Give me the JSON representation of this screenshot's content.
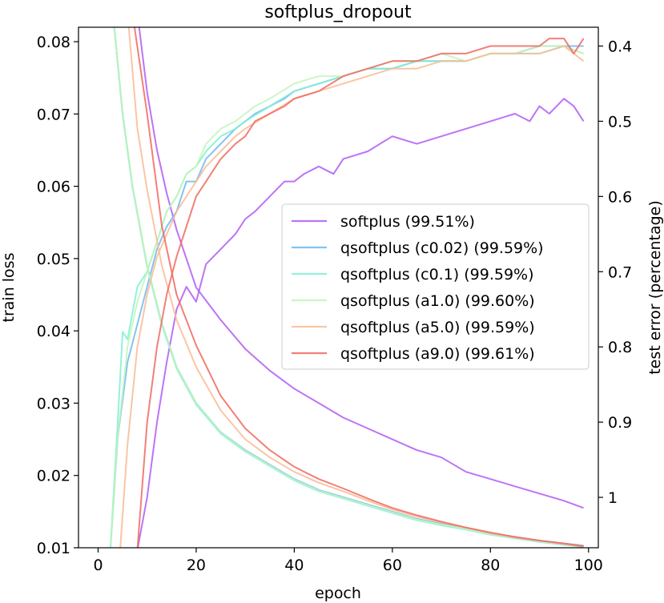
{
  "chart_data": {
    "type": "line",
    "title": "softplus_dropout",
    "xlabel": "epoch",
    "ylabel_left": "train loss",
    "ylabel_right": "test error (percentage)",
    "xlim": [
      -4,
      102
    ],
    "ylim_left": [
      0.01,
      0.082
    ],
    "ylim_right": [
      1.067,
      0.375
    ],
    "right_axis_inverted": true,
    "x_ticks": [
      0,
      20,
      40,
      60,
      80,
      100
    ],
    "y_ticks_left": [
      0.01,
      0.02,
      0.03,
      0.04,
      0.05,
      0.06,
      0.07,
      0.08
    ],
    "y_ticks_right": [
      0.4,
      0.5,
      0.6,
      0.7,
      0.8,
      0.9,
      1
    ],
    "y_tick_labels_left": [
      "0.01",
      "0.02",
      "0.03",
      "0.04",
      "0.05",
      "0.06",
      "0.07",
      "0.08"
    ],
    "y_tick_labels_right": [
      "0.4",
      "0.5",
      "0.6",
      "0.7",
      "0.8",
      "0.9",
      "1"
    ],
    "x_tick_labels": [
      "0",
      "20",
      "40",
      "60",
      "80",
      "100"
    ],
    "grid": false,
    "legend_position": "center-right",
    "series": [
      {
        "name": "softplus (99.51%)",
        "color": "#b05cf5",
        "train_loss": {
          "x": [
            8,
            10,
            12,
            14,
            16,
            18,
            20,
            25,
            30,
            35,
            40,
            45,
            50,
            55,
            60,
            65,
            70,
            75,
            80,
            85,
            90,
            95,
            99
          ],
          "y": [
            0.084,
            0.073,
            0.065,
            0.059,
            0.054,
            0.05,
            0.046,
            0.0415,
            0.0375,
            0.0345,
            0.032,
            0.03,
            0.028,
            0.0265,
            0.025,
            0.0235,
            0.0225,
            0.0205,
            0.0195,
            0.0185,
            0.0175,
            0.0165,
            0.0155
          ]
        },
        "test_error": {
          "x": [
            8,
            10,
            12,
            14,
            16,
            18,
            20,
            22,
            25,
            28,
            30,
            32,
            35,
            38,
            40,
            42,
            45,
            48,
            50,
            55,
            60,
            65,
            70,
            75,
            80,
            85,
            88,
            90,
            92,
            95,
            97,
            99
          ],
          "y": [
            1.07,
            1.0,
            0.9,
            0.82,
            0.75,
            0.72,
            0.74,
            0.69,
            0.67,
            0.65,
            0.63,
            0.62,
            0.6,
            0.58,
            0.58,
            0.57,
            0.56,
            0.57,
            0.55,
            0.54,
            0.52,
            0.53,
            0.52,
            0.51,
            0.5,
            0.49,
            0.5,
            0.48,
            0.49,
            0.47,
            0.48,
            0.5
          ]
        }
      },
      {
        "name": "qsoftplus (c0.02) (99.59%)",
        "color": "#6fb9ee",
        "train_loss": {
          "x": [
            3,
            5,
            7,
            10,
            13,
            16,
            20,
            25,
            30,
            35,
            40,
            45,
            50,
            55,
            60,
            65,
            70,
            75,
            80,
            85,
            90,
            95,
            99
          ],
          "y": [
            0.084,
            0.07,
            0.06,
            0.049,
            0.041,
            0.035,
            0.03,
            0.026,
            0.0235,
            0.0215,
            0.0195,
            0.018,
            0.017,
            0.016,
            0.015,
            0.014,
            0.0133,
            0.0127,
            0.012,
            0.0115,
            0.011,
            0.0106,
            0.0103
          ]
        },
        "test_error": {
          "x": [
            2.5,
            4,
            6,
            8,
            10,
            12,
            14,
            16,
            18,
            20,
            22,
            25,
            28,
            30,
            32,
            35,
            38,
            40,
            45,
            50,
            55,
            60,
            65,
            70,
            75,
            80,
            85,
            90,
            95,
            99
          ],
          "y": [
            1.07,
            0.92,
            0.82,
            0.77,
            0.72,
            0.67,
            0.64,
            0.62,
            0.58,
            0.58,
            0.55,
            0.53,
            0.51,
            0.5,
            0.49,
            0.48,
            0.47,
            0.46,
            0.45,
            0.44,
            0.43,
            0.43,
            0.42,
            0.42,
            0.42,
            0.41,
            0.41,
            0.4,
            0.4,
            0.4
          ]
        }
      },
      {
        "name": "qsoftplus (c0.1) (99.59%)",
        "color": "#7ff0d6",
        "train_loss": {
          "x": [
            3,
            5,
            7,
            10,
            13,
            16,
            20,
            25,
            30,
            35,
            40,
            45,
            50,
            55,
            60,
            65,
            70,
            75,
            80,
            85,
            90,
            95,
            99
          ],
          "y": [
            0.084,
            0.07,
            0.06,
            0.0488,
            0.0408,
            0.0348,
            0.0298,
            0.0258,
            0.0233,
            0.0213,
            0.0193,
            0.0178,
            0.0168,
            0.0158,
            0.0148,
            0.0138,
            0.0131,
            0.0125,
            0.0118,
            0.0113,
            0.0108,
            0.0104,
            0.0101
          ]
        },
        "test_error": {
          "x": [
            2.5,
            4,
            5,
            6,
            8,
            10,
            12,
            14,
            16,
            18,
            20,
            22,
            25,
            28,
            30,
            35,
            40,
            45,
            50,
            55,
            60,
            65,
            70,
            75,
            80,
            85,
            90,
            95,
            99
          ],
          "y": [
            1.07,
            0.9,
            0.78,
            0.79,
            0.72,
            0.7,
            0.66,
            0.62,
            0.6,
            0.57,
            0.56,
            0.54,
            0.52,
            0.51,
            0.5,
            0.48,
            0.46,
            0.45,
            0.44,
            0.43,
            0.43,
            0.42,
            0.42,
            0.42,
            0.41,
            0.41,
            0.41,
            0.4,
            0.41
          ]
        }
      },
      {
        "name": "qsoftplus (a1.0) (99.60%)",
        "color": "#c3f5b8",
        "train_loss": {
          "x": [
            3,
            5,
            7,
            10,
            13,
            16,
            20,
            25,
            30,
            35,
            40,
            45,
            50,
            55,
            60,
            65,
            70,
            75,
            80,
            85,
            90,
            95,
            99
          ],
          "y": [
            0.084,
            0.0702,
            0.0602,
            0.049,
            0.041,
            0.035,
            0.03,
            0.026,
            0.0234,
            0.0214,
            0.0194,
            0.0179,
            0.0169,
            0.0159,
            0.0149,
            0.0139,
            0.0132,
            0.0126,
            0.0119,
            0.0114,
            0.0109,
            0.0105,
            0.0102
          ]
        },
        "test_error": {
          "x": [
            2.5,
            4,
            6,
            8,
            10,
            12,
            14,
            16,
            18,
            20,
            22,
            25,
            28,
            30,
            32,
            35,
            40,
            45,
            50,
            55,
            60,
            65,
            70,
            75,
            80,
            85,
            90,
            95,
            99
          ],
          "y": [
            1.07,
            0.92,
            0.8,
            0.74,
            0.7,
            0.66,
            0.62,
            0.6,
            0.57,
            0.56,
            0.53,
            0.51,
            0.5,
            0.49,
            0.48,
            0.47,
            0.45,
            0.44,
            0.44,
            0.43,
            0.42,
            0.42,
            0.41,
            0.42,
            0.41,
            0.41,
            0.4,
            0.4,
            0.41
          ]
        }
      },
      {
        "name": "qsoftplus (a5.0) (99.59%)",
        "color": "#f9bb94",
        "train_loss": {
          "x": [
            6,
            8,
            10,
            13,
            16,
            20,
            25,
            30,
            35,
            40,
            45,
            50,
            55,
            60,
            65,
            70,
            75,
            80,
            85,
            90,
            95,
            99
          ],
          "y": [
            0.084,
            0.068,
            0.0595,
            0.049,
            0.0415,
            0.035,
            0.029,
            0.025,
            0.0225,
            0.0205,
            0.019,
            0.0178,
            0.0165,
            0.0153,
            0.0143,
            0.0135,
            0.0128,
            0.012,
            0.0114,
            0.011,
            0.0105,
            0.0102
          ]
        },
        "test_error": {
          "x": [
            4.5,
            6,
            8,
            10,
            12,
            14,
            16,
            18,
            20,
            22,
            25,
            28,
            30,
            35,
            40,
            45,
            50,
            55,
            60,
            65,
            70,
            75,
            80,
            85,
            90,
            95,
            99
          ],
          "y": [
            1.07,
            0.93,
            0.8,
            0.73,
            0.68,
            0.65,
            0.62,
            0.6,
            0.58,
            0.56,
            0.54,
            0.52,
            0.51,
            0.49,
            0.47,
            0.46,
            0.45,
            0.44,
            0.43,
            0.43,
            0.42,
            0.42,
            0.41,
            0.41,
            0.41,
            0.4,
            0.42
          ]
        }
      },
      {
        "name": "qsoftplus (a9.0) (99.61%)",
        "color": "#f06a60",
        "train_loss": {
          "x": [
            7,
            10,
            13,
            16,
            20,
            25,
            30,
            35,
            40,
            45,
            50,
            55,
            60,
            65,
            70,
            75,
            80,
            85,
            90,
            95,
            99
          ],
          "y": [
            0.084,
            0.07,
            0.0545,
            0.045,
            0.038,
            0.031,
            0.0265,
            0.0235,
            0.0212,
            0.0195,
            0.0182,
            0.0168,
            0.0155,
            0.0145,
            0.0136,
            0.0128,
            0.0121,
            0.0115,
            0.011,
            0.0106,
            0.0102
          ]
        },
        "test_error": {
          "x": [
            8,
            10,
            12,
            14,
            16,
            18,
            20,
            22,
            25,
            28,
            30,
            32,
            35,
            38,
            40,
            45,
            50,
            55,
            60,
            65,
            70,
            75,
            80,
            85,
            90,
            92,
            95,
            97,
            99
          ],
          "y": [
            1.07,
            0.9,
            0.8,
            0.73,
            0.68,
            0.64,
            0.6,
            0.58,
            0.55,
            0.53,
            0.52,
            0.5,
            0.49,
            0.48,
            0.47,
            0.46,
            0.44,
            0.43,
            0.42,
            0.42,
            0.41,
            0.41,
            0.4,
            0.4,
            0.4,
            0.39,
            0.39,
            0.41,
            0.39
          ]
        }
      }
    ]
  }
}
